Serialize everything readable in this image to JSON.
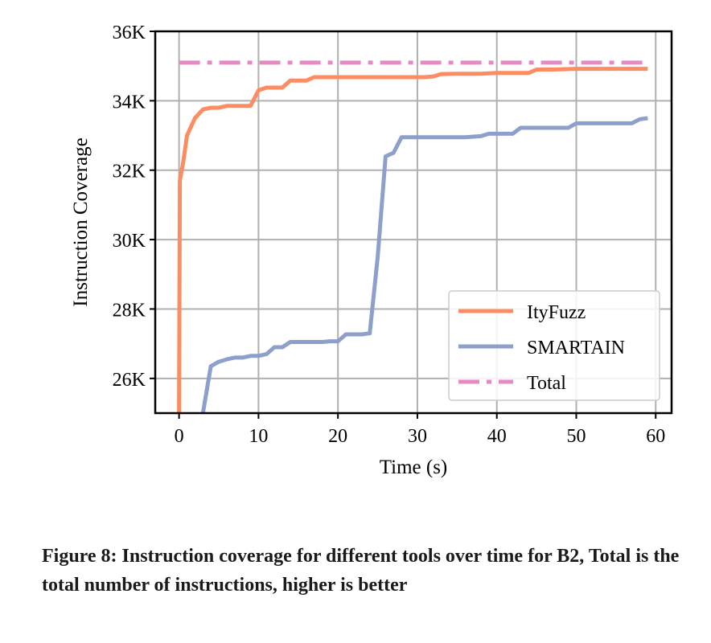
{
  "chart_data": {
    "type": "line",
    "title": "",
    "xlabel": "Time (s)",
    "ylabel": "Instruction Coverage",
    "xlim": [
      -3,
      62
    ],
    "ylim": [
      25000,
      36000
    ],
    "xticks": [
      0,
      10,
      20,
      30,
      40,
      50,
      60
    ],
    "xtick_labels": [
      "0",
      "10",
      "20",
      "30",
      "40",
      "50",
      "60"
    ],
    "yticks": [
      26000,
      28000,
      30000,
      32000,
      34000,
      36000
    ],
    "ytick_labels": [
      "26K",
      "28K",
      "30K",
      "32K",
      "34K",
      "36K"
    ],
    "grid": true,
    "legend_position": "lower-right",
    "series": [
      {
        "name": "ItyFuzz",
        "color": "#fc8d62",
        "style": "solid",
        "x": [
          0,
          0.1,
          0.5,
          1,
          2,
          3,
          4,
          5,
          6,
          7,
          8,
          9,
          10,
          11,
          12,
          13,
          14,
          15,
          16,
          17,
          18,
          19,
          20,
          22,
          25,
          28,
          31,
          32,
          33,
          35,
          38,
          40,
          42,
          44,
          45,
          47,
          50,
          53,
          56,
          59
        ],
        "y": [
          25000,
          31700,
          32200,
          33000,
          33500,
          33750,
          33800,
          33800,
          33850,
          33850,
          33850,
          33850,
          34300,
          34380,
          34380,
          34380,
          34580,
          34580,
          34580,
          34680,
          34680,
          34680,
          34680,
          34680,
          34680,
          34680,
          34680,
          34700,
          34770,
          34780,
          34780,
          34800,
          34800,
          34800,
          34900,
          34900,
          34920,
          34920,
          34920,
          34920
        ]
      },
      {
        "name": "SMARTAIN",
        "color": "#8da0cb",
        "style": "solid",
        "x": [
          3,
          4,
          5,
          6,
          7,
          8,
          9,
          10,
          11,
          12,
          13,
          14,
          15,
          16,
          17,
          18,
          19,
          20,
          21,
          22,
          23,
          24,
          25,
          26,
          27,
          28,
          30,
          33,
          36,
          38,
          39,
          41,
          42,
          43,
          45,
          47,
          49,
          50,
          52,
          54,
          56,
          57,
          58,
          59
        ],
        "y": [
          25000,
          26350,
          26480,
          26550,
          26600,
          26600,
          26650,
          26650,
          26700,
          26900,
          26900,
          27050,
          27050,
          27050,
          27050,
          27050,
          27070,
          27070,
          27270,
          27270,
          27270,
          27300,
          29500,
          32400,
          32500,
          32950,
          32950,
          32950,
          32950,
          32980,
          33050,
          33050,
          33050,
          33220,
          33220,
          33220,
          33220,
          33350,
          33350,
          33350,
          33350,
          33350,
          33470,
          33500
        ]
      },
      {
        "name": "Total",
        "color": "#e78ac3",
        "style": "dashdot",
        "x": [
          0,
          59
        ],
        "y": [
          35100,
          35100
        ]
      }
    ]
  },
  "caption": "Figure 8: Instruction coverage for different tools over time for B2, Total is the total number of instructions, higher is better"
}
